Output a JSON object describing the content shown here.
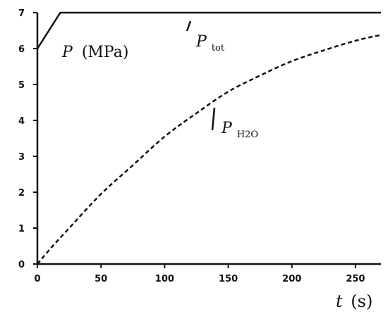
{
  "chart_data": {
    "type": "line",
    "title": "",
    "xlabel": {
      "symbol": "t",
      "unit": "(s)"
    },
    "ylabel": {
      "symbol": "P",
      "unit": "(MPa)"
    },
    "xlim": [
      0,
      270
    ],
    "ylim": [
      0,
      7
    ],
    "x_ticks": [
      "0",
      "50",
      "100",
      "150",
      "200",
      "250"
    ],
    "y_ticks": [
      "0",
      "1",
      "2",
      "3",
      "4",
      "5",
      "6",
      "7"
    ],
    "grid": false,
    "legend": "none",
    "series": [
      {
        "name": {
          "symbol": "P",
          "subscript": "tot"
        },
        "style": "solid",
        "color": "#111111",
        "x": [
          0,
          18,
          50,
          100,
          150,
          200,
          250,
          270
        ],
        "y": [
          6.0,
          7.0,
          7.0,
          7.0,
          7.0,
          7.0,
          7.0,
          7.0
        ]
      },
      {
        "name": {
          "symbol": "P",
          "subscript": "H2O"
        },
        "style": "dashed",
        "color": "#111111",
        "x": [
          0,
          10,
          25,
          50,
          75,
          100,
          125,
          150,
          175,
          200,
          225,
          250,
          270
        ],
        "y": [
          0,
          0.42,
          1.0,
          1.95,
          2.75,
          3.55,
          4.2,
          4.8,
          5.25,
          5.65,
          5.95,
          6.22,
          6.38
        ]
      }
    ]
  }
}
